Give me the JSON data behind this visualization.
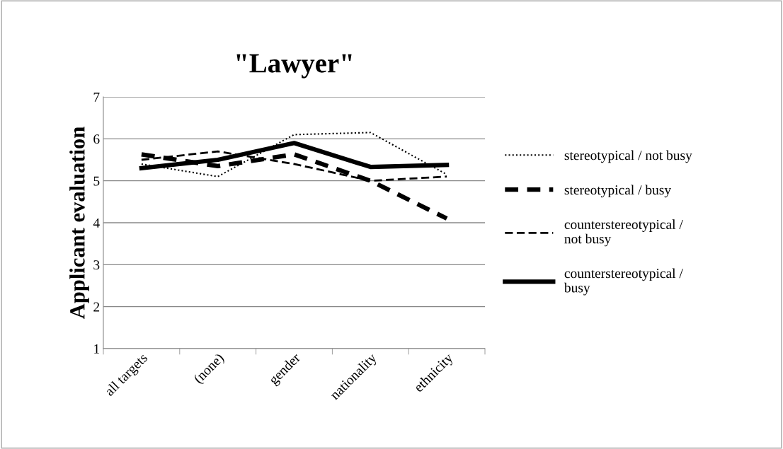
{
  "chart_data": {
    "type": "line",
    "title": "\"Lawyer\"",
    "ylabel": "Applicant evaluation",
    "categories": [
      "all targets",
      "(none)",
      "gender",
      "nationality",
      "ethnicity"
    ],
    "ylim": [
      1,
      7
    ],
    "yticks": [
      1,
      2,
      3,
      4,
      5,
      6,
      7
    ],
    "grid": "y",
    "legend": "right",
    "marker": "none",
    "series": [
      {
        "name": "stereotypical / not busy",
        "color": "#000000",
        "line_style": "dotted",
        "values": [
          5.4,
          5.1,
          6.1,
          6.15,
          5.15
        ]
      },
      {
        "name": "stereotypical / busy",
        "color": "#000000",
        "line_style": "longdash",
        "values": [
          5.63,
          5.35,
          5.63,
          5.0,
          4.1
        ]
      },
      {
        "name": "counterstereotypical / not busy",
        "color": "#000000",
        "line_style": "dashed",
        "values": [
          5.5,
          5.7,
          5.4,
          5.0,
          5.1
        ]
      },
      {
        "name": "counterstereotypical / busy",
        "color": "#000000",
        "line_style": "solid",
        "values": [
          5.3,
          5.5,
          5.9,
          5.33,
          5.38
        ]
      }
    ]
  }
}
